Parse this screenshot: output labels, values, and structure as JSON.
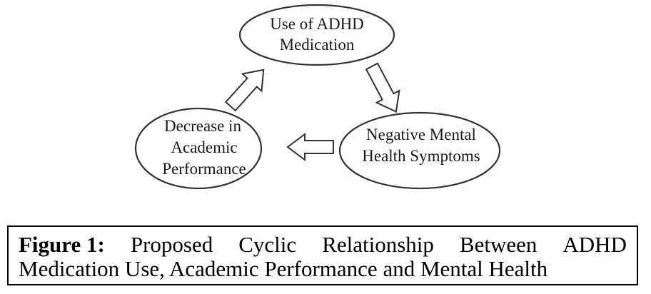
{
  "nodes": {
    "medication": {
      "lines": [
        "Use of ADHD",
        "Medication"
      ]
    },
    "mental_health": {
      "lines": [
        "Negative Mental",
        "Health Symptoms"
      ]
    },
    "academic": {
      "lines": [
        "Decrease in",
        "Academic",
        "Performance"
      ]
    }
  },
  "caption": {
    "label": "Figure 1:",
    "line1_words": [
      "Proposed",
      "Cyclic",
      "Relationship",
      "Between",
      "ADHD"
    ],
    "line2": "Medication Use, Academic Performance and Mental Health"
  }
}
